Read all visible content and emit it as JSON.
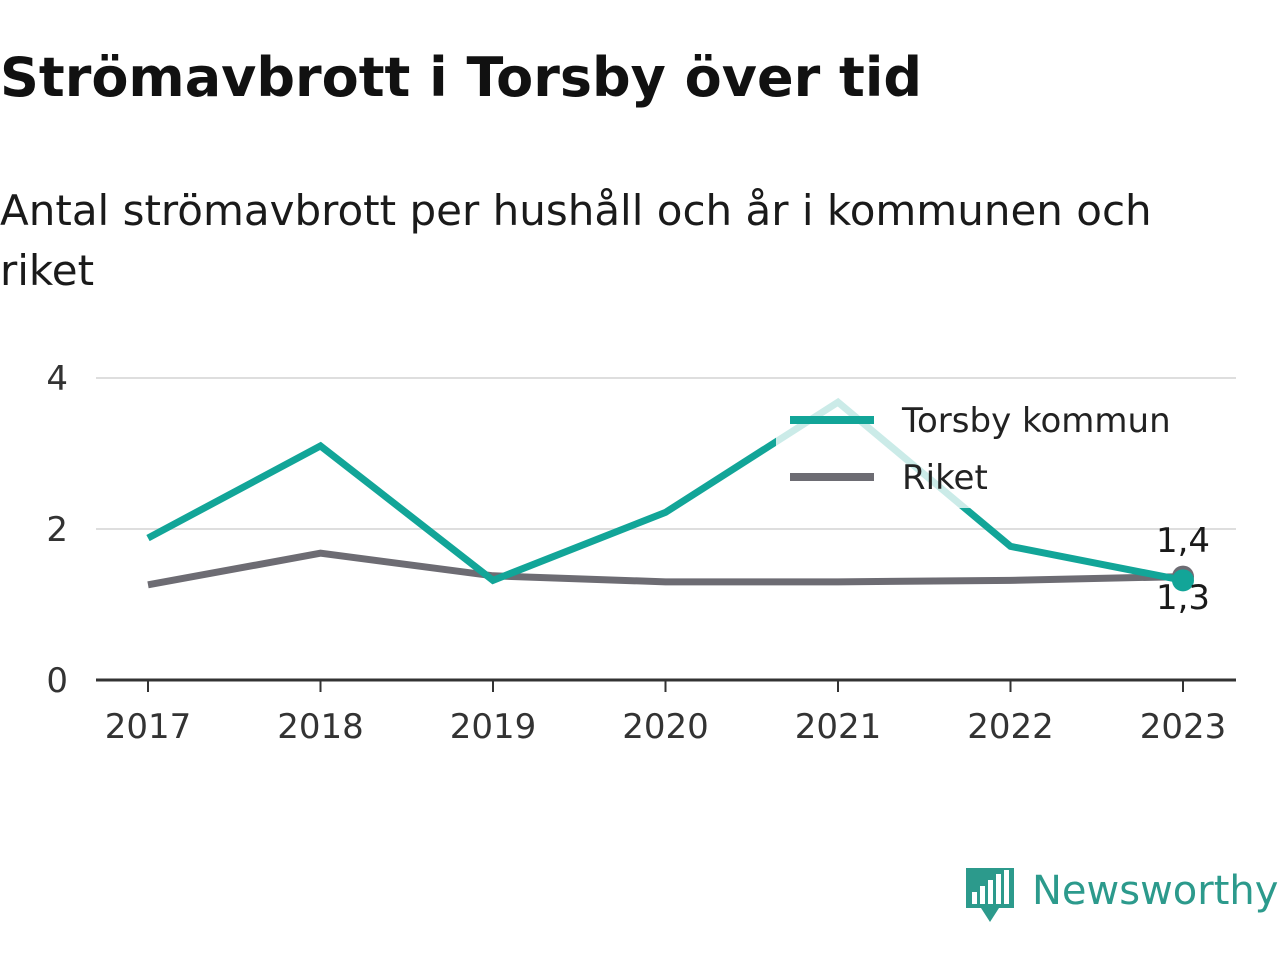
{
  "chart_data": {
    "type": "line",
    "title": "Strömavbrott i Torsby över tid",
    "subtitle_lines": [
      "Antal strömavbrott per hushåll och år i kommunen och",
      "riket"
    ],
    "categories": [
      "2017",
      "2018",
      "2019",
      "2020",
      "2021",
      "2022",
      "2023"
    ],
    "y_ticks": [
      "0",
      "2",
      "4"
    ],
    "ylim": [
      0,
      4
    ],
    "grid": true,
    "legend_position": "top-right",
    "series": [
      {
        "name": "Torsby kommun",
        "color": "#12a598",
        "values": [
          1.88,
          3.1,
          1.32,
          2.22,
          3.68,
          1.77,
          1.32
        ],
        "end_label": "1,3"
      },
      {
        "name": "Riket",
        "color": "#6d6c73",
        "values": [
          1.26,
          1.68,
          1.38,
          1.3,
          1.3,
          1.32,
          1.37
        ],
        "end_label": "1,4"
      }
    ]
  },
  "brand": {
    "name": "Newsworthy",
    "icon": "newsworthy-logo-icon",
    "color": "#2c9a8c"
  }
}
